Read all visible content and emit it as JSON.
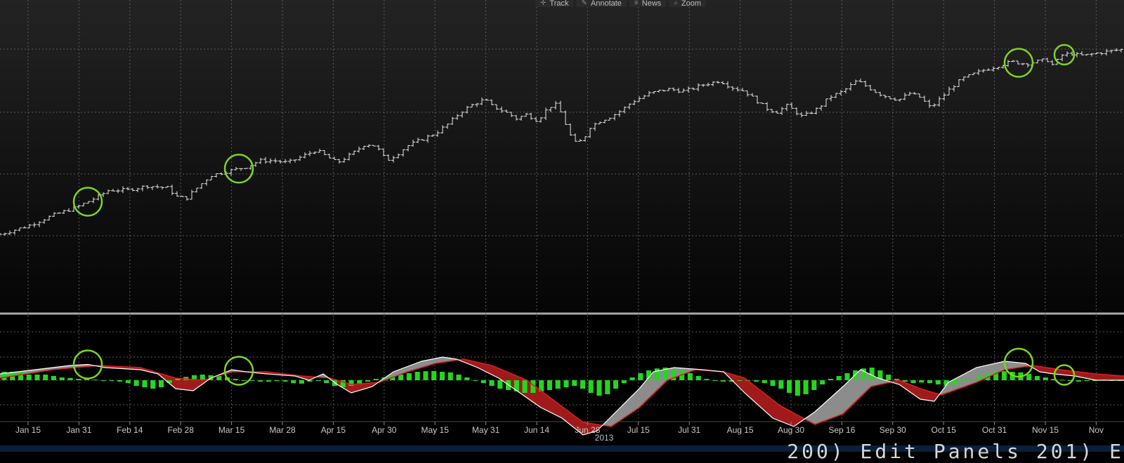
{
  "toolbar": {
    "track_label": "Track",
    "annotate_label": "Annotate",
    "news_label": "News",
    "zoom_label": "Zoom"
  },
  "colors": {
    "background": "#000000",
    "price_bar": "#e6e6e6",
    "grid": "#5a5a5a",
    "circle": "#7ed321",
    "macd_line": "#ffffff",
    "signal_line": "#d12020",
    "fill_up": "#8c8c8c",
    "fill_down": "#a01a1a",
    "histogram": "#22d81e",
    "bottom_bar": "#0b1f3a"
  },
  "bottom_bar": {
    "text": "200) Edit Panels 201) E"
  },
  "chart_data": [
    {
      "type": "ohlc",
      "panel": "price",
      "year_label": "2013",
      "x_ticks": [
        "Jan 15",
        "Jan 31",
        "Feb 14",
        "Feb 28",
        "Mar 15",
        "Mar 28",
        "Apr 15",
        "Apr 30",
        "May 15",
        "May 31",
        "Jun 14",
        "Jun 28",
        "Jul 15",
        "Jul 31",
        "Aug 15",
        "Aug 30",
        "Sep 16",
        "Sep 30",
        "Oct 15",
        "Oct 31",
        "Nov 15",
        "Nov"
      ],
      "x_range_days": [
        0,
        320
      ],
      "y_range_relative": [
        0,
        100
      ],
      "grid": true,
      "price_path": [
        [
          0,
          12
        ],
        [
          8,
          16
        ],
        [
          15,
          21
        ],
        [
          22,
          25
        ],
        [
          28,
          30
        ],
        [
          31,
          33
        ],
        [
          36,
          33
        ],
        [
          42,
          35
        ],
        [
          48,
          34
        ],
        [
          50,
          30
        ],
        [
          53,
          29
        ],
        [
          56,
          34
        ],
        [
          60,
          40
        ],
        [
          65,
          42
        ],
        [
          70,
          44
        ],
        [
          74,
          47
        ],
        [
          78,
          47
        ],
        [
          82,
          46
        ],
        [
          86,
          49
        ],
        [
          90,
          52
        ],
        [
          93,
          49
        ],
        [
          96,
          46
        ],
        [
          100,
          50
        ],
        [
          104,
          55
        ],
        [
          107,
          54
        ],
        [
          110,
          47
        ],
        [
          113,
          50
        ],
        [
          116,
          54
        ],
        [
          120,
          57
        ],
        [
          124,
          60
        ],
        [
          128,
          65
        ],
        [
          131,
          70
        ],
        [
          135,
          74
        ],
        [
          138,
          76
        ],
        [
          140,
          73
        ],
        [
          144,
          70
        ],
        [
          147,
          67
        ],
        [
          150,
          69
        ],
        [
          153,
          66
        ],
        [
          156,
          72
        ],
        [
          158,
          74
        ],
        [
          160,
          69
        ],
        [
          162,
          60
        ],
        [
          164,
          55
        ],
        [
          166,
          57
        ],
        [
          168,
          63
        ],
        [
          171,
          66
        ],
        [
          174,
          68
        ],
        [
          177,
          71
        ],
        [
          180,
          75
        ],
        [
          185,
          79
        ],
        [
          190,
          81
        ],
        [
          195,
          80
        ],
        [
          200,
          83
        ],
        [
          205,
          85
        ],
        [
          208,
          82
        ],
        [
          212,
          80
        ],
        [
          215,
          76
        ],
        [
          218,
          72
        ],
        [
          221,
          70
        ],
        [
          224,
          73
        ],
        [
          226,
          71
        ],
        [
          228,
          68
        ],
        [
          230,
          69
        ],
        [
          233,
          72
        ],
        [
          236,
          77
        ],
        [
          240,
          80
        ],
        [
          244,
          85
        ],
        [
          247,
          82
        ],
        [
          250,
          79
        ],
        [
          253,
          77
        ],
        [
          256,
          76
        ],
        [
          259,
          79
        ],
        [
          262,
          77
        ],
        [
          265,
          72
        ],
        [
          268,
          77
        ],
        [
          271,
          82
        ],
        [
          274,
          86
        ],
        [
          277,
          88
        ],
        [
          280,
          90
        ],
        [
          284,
          92
        ],
        [
          288,
          94
        ],
        [
          292,
          93
        ],
        [
          295,
          94
        ],
        [
          298,
          95
        ],
        [
          300,
          92
        ],
        [
          302,
          97
        ],
        [
          305,
          98
        ],
        [
          307,
          97
        ],
        [
          309,
          97
        ],
        [
          312,
          98
        ],
        [
          316,
          99
        ],
        [
          320,
          100
        ]
      ],
      "circles_at_days": [
        25,
        68,
        290,
        303
      ]
    },
    {
      "type": "line+histogram",
      "panel": "MACD",
      "series": [
        {
          "key": "macd",
          "points": [
            [
              0,
              0.3
            ],
            [
              10,
              0.5
            ],
            [
              20,
              0.7
            ],
            [
              25,
              0.75
            ],
            [
              30,
              0.6
            ],
            [
              40,
              0.5
            ],
            [
              45,
              0.3
            ],
            [
              50,
              -0.4
            ],
            [
              55,
              -0.5
            ],
            [
              60,
              0.1
            ],
            [
              66,
              0.5
            ],
            [
              70,
              0.4
            ],
            [
              76,
              0.3
            ],
            [
              84,
              0.2
            ],
            [
              88,
              0.0
            ],
            [
              92,
              0.3
            ],
            [
              96,
              -0.2
            ],
            [
              100,
              -0.6
            ],
            [
              106,
              -0.3
            ],
            [
              112,
              0.4
            ],
            [
              120,
              0.9
            ],
            [
              126,
              1.1
            ],
            [
              130,
              1.0
            ],
            [
              136,
              0.6
            ],
            [
              142,
              0.1
            ],
            [
              148,
              -0.6
            ],
            [
              154,
              -1.3
            ],
            [
              160,
              -1.8
            ],
            [
              166,
              -2.6
            ],
            [
              170,
              -2.4
            ],
            [
              176,
              -1.4
            ],
            [
              182,
              -0.4
            ],
            [
              186,
              0.4
            ],
            [
              192,
              0.6
            ],
            [
              200,
              0.5
            ],
            [
              206,
              0.4
            ],
            [
              212,
              -0.6
            ],
            [
              220,
              -1.8
            ],
            [
              226,
              -2.2
            ],
            [
              232,
              -1.5
            ],
            [
              240,
              -0.3
            ],
            [
              245,
              0.5
            ],
            [
              250,
              0.1
            ],
            [
              256,
              -0.2
            ],
            [
              262,
              -0.9
            ],
            [
              266,
              -1.0
            ],
            [
              270,
              -0.1
            ],
            [
              278,
              0.6
            ],
            [
              286,
              0.9
            ],
            [
              292,
              0.8
            ],
            [
              296,
              0.4
            ],
            [
              300,
              0.3
            ],
            [
              306,
              0.2
            ],
            [
              312,
              0.0
            ],
            [
              320,
              0.0
            ]
          ]
        },
        {
          "key": "signal",
          "points": [
            [
              0,
              0.1
            ],
            [
              15,
              0.5
            ],
            [
              28,
              0.7
            ],
            [
              40,
              0.6
            ],
            [
              50,
              0.1
            ],
            [
              58,
              0.0
            ],
            [
              66,
              0.4
            ],
            [
              76,
              0.4
            ],
            [
              86,
              0.2
            ],
            [
              94,
              0.1
            ],
            [
              100,
              -0.2
            ],
            [
              108,
              -0.1
            ],
            [
              116,
              0.4
            ],
            [
              124,
              0.8
            ],
            [
              132,
              1.0
            ],
            [
              140,
              0.7
            ],
            [
              150,
              0.0
            ],
            [
              158,
              -1.0
            ],
            [
              166,
              -2.0
            ],
            [
              174,
              -2.2
            ],
            [
              182,
              -1.3
            ],
            [
              190,
              0.0
            ],
            [
              198,
              0.5
            ],
            [
              206,
              0.4
            ],
            [
              212,
              0.1
            ],
            [
              222,
              -1.2
            ],
            [
              232,
              -2.1
            ],
            [
              240,
              -1.6
            ],
            [
              248,
              -0.3
            ],
            [
              256,
              0.0
            ],
            [
              262,
              -0.4
            ],
            [
              268,
              -0.7
            ],
            [
              278,
              -0.1
            ],
            [
              286,
              0.5
            ],
            [
              294,
              0.7
            ],
            [
              302,
              0.5
            ],
            [
              312,
              0.3
            ],
            [
              320,
              0.2
            ]
          ]
        }
      ],
      "histogram": [
        0.3,
        0.3,
        0.3,
        0.2,
        0.2,
        0.2,
        0.15,
        0.1,
        0.08,
        0.05,
        0.05,
        0.02,
        0.0,
        0.0,
        -0.05,
        -0.1,
        -0.2,
        -0.25,
        -0.3,
        -0.25,
        -0.1,
        0.05,
        0.12,
        0.18,
        0.2,
        0.18,
        0.15,
        0.1,
        0.05,
        0.0,
        -0.02,
        -0.05,
        -0.05,
        -0.03,
        -0.05,
        -0.1,
        -0.12,
        -0.05,
        0.0,
        -0.1,
        -0.2,
        -0.25,
        -0.2,
        -0.15,
        -0.05,
        0.05,
        0.1,
        0.15,
        0.2,
        0.25,
        0.3,
        0.32,
        0.33,
        0.3,
        0.28,
        0.2,
        0.1,
        0.0,
        -0.1,
        -0.2,
        -0.3,
        -0.35,
        -0.4,
        -0.45,
        -0.45,
        -0.4,
        -0.35,
        -0.3,
        -0.25,
        -0.2,
        -0.3,
        -0.45,
        -0.55,
        -0.5,
        -0.3,
        -0.1,
        0.1,
        0.25,
        0.35,
        0.42,
        0.45,
        0.4,
        0.35,
        0.25,
        0.15,
        0.05,
        0.0,
        -0.05,
        -0.05,
        0.0,
        0.0,
        -0.05,
        -0.1,
        -0.2,
        -0.3,
        -0.45,
        -0.55,
        -0.5,
        -0.35,
        -0.15,
        0.05,
        0.15,
        0.25,
        0.35,
        0.42,
        0.45,
        0.35,
        0.2,
        0.05,
        -0.05,
        -0.1,
        -0.08,
        -0.1,
        -0.15,
        -0.2,
        -0.15,
        -0.05,
        0.05,
        0.15,
        0.25,
        0.3,
        0.32,
        0.3,
        0.28,
        0.22,
        0.15,
        0.1,
        0.05,
        0.02,
        -0.02,
        -0.05,
        -0.03,
        0.0,
        0.02,
        0.0,
        0.0
      ],
      "circles_at_days": [
        25,
        68,
        290,
        303
      ],
      "grid": true
    }
  ]
}
